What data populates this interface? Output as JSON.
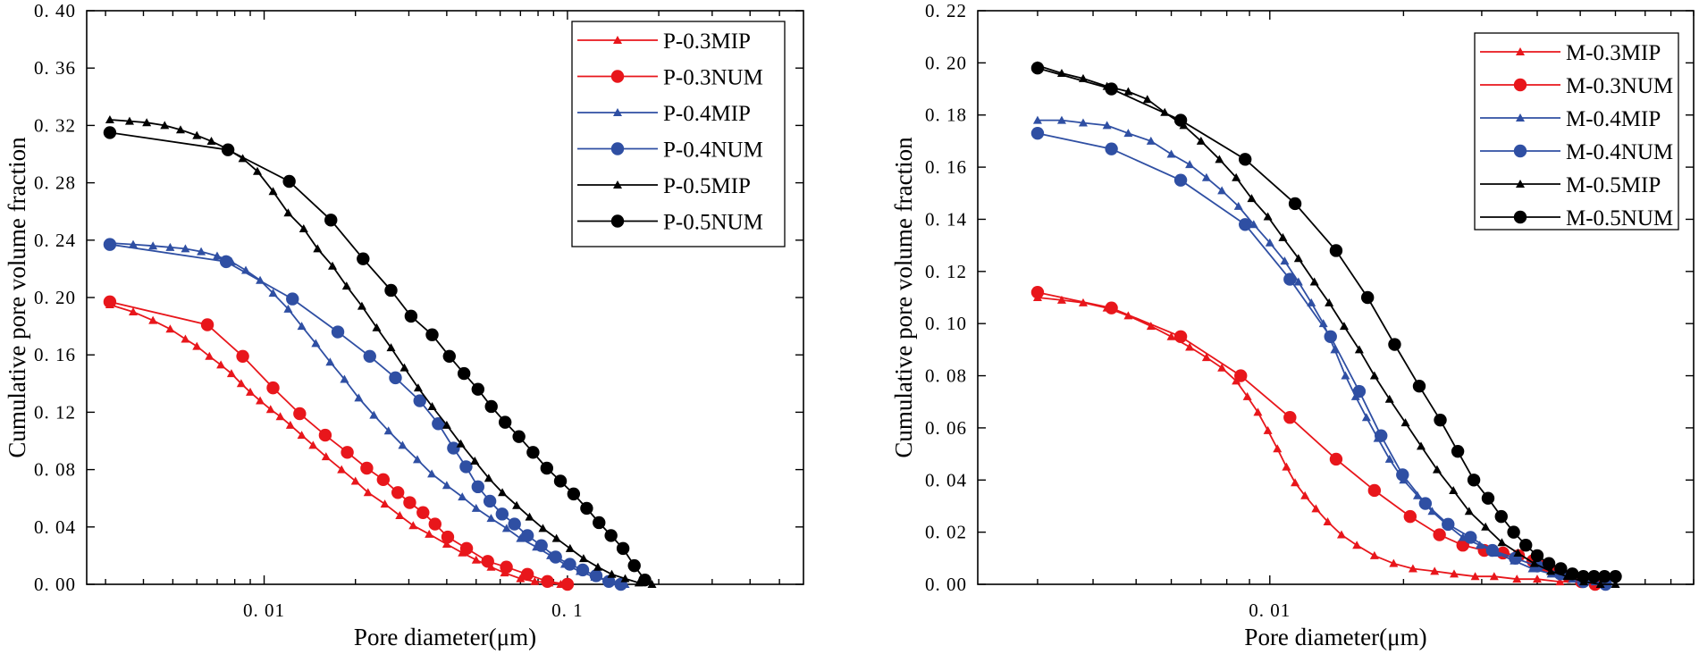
{
  "colors": {
    "red": "#e8161b",
    "blue": "#2f4fa3",
    "black": "#000000"
  },
  "chart_data": [
    {
      "type": "line",
      "xscale": "log",
      "xlabel": "Pore diameter(μm)",
      "ylabel": "Cumulative pore volume fraction",
      "xlim": [
        0.0026,
        0.6
      ],
      "ylim": [
        0,
        0.4
      ],
      "yticks": [
        0.0,
        0.04,
        0.08,
        0.12,
        0.16,
        0.2,
        0.24,
        0.28,
        0.32,
        0.36,
        0.4
      ],
      "ytick_labels": [
        "0.00",
        "0.04",
        "0.08",
        "0.12",
        "0.16",
        "0.20",
        "0.24",
        "0.28",
        "0.32",
        "0.36",
        "0.40"
      ],
      "xticks": [
        0.01,
        0.1
      ],
      "xtick_labels": [
        "0.01",
        "0.1"
      ],
      "legend_position": "top-right",
      "series": [
        {
          "name": "P-0.3MIP",
          "color": "red",
          "marker": "triangle",
          "x": [
            0.0031,
            0.0037,
            0.0043,
            0.0049,
            0.0055,
            0.006,
            0.0066,
            0.0072,
            0.0078,
            0.0084,
            0.009,
            0.0097,
            0.0105,
            0.0113,
            0.0122,
            0.0133,
            0.0145,
            0.016,
            0.018,
            0.02,
            0.022,
            0.025,
            0.028,
            0.031,
            0.035,
            0.04,
            0.045,
            0.05,
            0.056,
            0.062,
            0.07,
            0.078,
            0.087,
            0.095
          ],
          "y": [
            0.195,
            0.19,
            0.184,
            0.178,
            0.171,
            0.166,
            0.159,
            0.153,
            0.147,
            0.14,
            0.134,
            0.128,
            0.122,
            0.117,
            0.111,
            0.104,
            0.097,
            0.089,
            0.08,
            0.072,
            0.064,
            0.056,
            0.048,
            0.041,
            0.035,
            0.028,
            0.022,
            0.017,
            0.012,
            0.008,
            0.004,
            0.002,
            0.001,
            0.0
          ]
        },
        {
          "name": "P-0.3NUM",
          "color": "red",
          "marker": "circle",
          "x": [
            0.0031,
            0.0065,
            0.0085,
            0.0107,
            0.0131,
            0.0159,
            0.0188,
            0.0218,
            0.0247,
            0.0276,
            0.0302,
            0.0334,
            0.0366,
            0.0403,
            0.0465,
            0.0546,
            0.0629,
            0.0738,
            0.0859,
            0.1
          ],
          "y": [
            0.197,
            0.181,
            0.159,
            0.137,
            0.119,
            0.104,
            0.092,
            0.081,
            0.073,
            0.064,
            0.057,
            0.05,
            0.042,
            0.033,
            0.025,
            0.016,
            0.012,
            0.007,
            0.002,
            0.0
          ]
        },
        {
          "name": "P-0.4MIP",
          "color": "blue",
          "marker": "triangle",
          "x": [
            0.0031,
            0.0037,
            0.0043,
            0.0049,
            0.0055,
            0.0062,
            0.007,
            0.0078,
            0.0087,
            0.0097,
            0.0107,
            0.012,
            0.0133,
            0.0148,
            0.0165,
            0.0184,
            0.0205,
            0.023,
            0.0257,
            0.0286,
            0.032,
            0.0357,
            0.04,
            0.045,
            0.05,
            0.056,
            0.063,
            0.07,
            0.079,
            0.088,
            0.098,
            0.11,
            0.123,
            0.14,
            0.155
          ],
          "y": [
            0.238,
            0.237,
            0.236,
            0.235,
            0.234,
            0.232,
            0.229,
            0.225,
            0.219,
            0.212,
            0.203,
            0.192,
            0.18,
            0.168,
            0.155,
            0.143,
            0.13,
            0.118,
            0.107,
            0.097,
            0.087,
            0.077,
            0.069,
            0.061,
            0.053,
            0.046,
            0.039,
            0.032,
            0.026,
            0.02,
            0.014,
            0.009,
            0.005,
            0.002,
            0.0
          ]
        },
        {
          "name": "P-0.4NUM",
          "color": "blue",
          "marker": "circle",
          "x": [
            0.0031,
            0.0075,
            0.0124,
            0.0175,
            0.0223,
            0.0271,
            0.0326,
            0.0375,
            0.0421,
            0.0463,
            0.0507,
            0.0555,
            0.0609,
            0.0669,
            0.0738,
            0.082,
            0.0914,
            0.1018,
            0.1123,
            0.1243,
            0.1369,
            0.15
          ],
          "y": [
            0.237,
            0.225,
            0.199,
            0.176,
            0.159,
            0.144,
            0.128,
            0.112,
            0.095,
            0.082,
            0.068,
            0.058,
            0.049,
            0.042,
            0.034,
            0.027,
            0.019,
            0.014,
            0.01,
            0.006,
            0.002,
            0.0
          ]
        },
        {
          "name": "P-0.5MIP",
          "color": "black",
          "marker": "triangle",
          "x": [
            0.0031,
            0.0036,
            0.0041,
            0.0047,
            0.0053,
            0.006,
            0.0067,
            0.0075,
            0.0085,
            0.0095,
            0.0107,
            0.012,
            0.0135,
            0.015,
            0.0168,
            0.0187,
            0.021,
            0.0235,
            0.0262,
            0.029,
            0.0322,
            0.0358,
            0.04,
            0.0445,
            0.0495,
            0.055,
            0.061,
            0.068,
            0.075,
            0.083,
            0.092,
            0.102,
            0.113,
            0.126,
            0.14,
            0.155,
            0.172,
            0.19
          ],
          "y": [
            0.324,
            0.323,
            0.322,
            0.32,
            0.317,
            0.313,
            0.309,
            0.304,
            0.297,
            0.288,
            0.274,
            0.259,
            0.248,
            0.234,
            0.222,
            0.208,
            0.194,
            0.179,
            0.165,
            0.151,
            0.137,
            0.124,
            0.111,
            0.098,
            0.086,
            0.074,
            0.064,
            0.055,
            0.047,
            0.039,
            0.032,
            0.025,
            0.018,
            0.012,
            0.007,
            0.004,
            0.001,
            0.0
          ]
        },
        {
          "name": "P-0.5NUM",
          "color": "black",
          "marker": "circle",
          "x": [
            0.0031,
            0.0076,
            0.0121,
            0.0166,
            0.0212,
            0.0262,
            0.0305,
            0.0358,
            0.0408,
            0.0456,
            0.0507,
            0.0561,
            0.0623,
            0.0692,
            0.077,
            0.0855,
            0.0948,
            0.1048,
            0.1157,
            0.1271,
            0.1392,
            0.1525,
            0.1661,
            0.18
          ],
          "y": [
            0.315,
            0.303,
            0.281,
            0.254,
            0.227,
            0.205,
            0.187,
            0.174,
            0.159,
            0.147,
            0.136,
            0.124,
            0.113,
            0.103,
            0.092,
            0.081,
            0.072,
            0.063,
            0.053,
            0.043,
            0.034,
            0.025,
            0.013,
            0.003
          ]
        }
      ]
    },
    {
      "type": "line",
      "xscale": "log",
      "xlabel": "Pore diameter(μm)",
      "ylabel": "Cumulative pore volume fraction",
      "xlim": [
        0.0022,
        0.09
      ],
      "ylim": [
        0,
        0.22
      ],
      "yticks": [
        0.0,
        0.02,
        0.04,
        0.06,
        0.08,
        0.1,
        0.12,
        0.14,
        0.16,
        0.18,
        0.2,
        0.22
      ],
      "ytick_labels": [
        "0.00",
        "0.02",
        "0.04",
        "0.06",
        "0.08",
        "0.10",
        "0.12",
        "0.14",
        "0.16",
        "0.18",
        "0.20",
        "0.22"
      ],
      "xticks": [
        0.01
      ],
      "xtick_labels": [
        "0.01"
      ],
      "legend_position": "top-right",
      "series": [
        {
          "name": "M-0.3MIP",
          "color": "red",
          "marker": "triangle",
          "x": [
            0.003,
            0.0034,
            0.0038,
            0.0043,
            0.0048,
            0.0054,
            0.006,
            0.0066,
            0.0072,
            0.0078,
            0.0084,
            0.0089,
            0.0094,
            0.0099,
            0.0104,
            0.0109,
            0.0114,
            0.012,
            0.0127,
            0.0135,
            0.0145,
            0.0157,
            0.0172,
            0.019,
            0.021,
            0.0235,
            0.026,
            0.029,
            0.032,
            0.036,
            0.04,
            0.045,
            0.05,
            0.055
          ],
          "y": [
            0.11,
            0.109,
            0.108,
            0.106,
            0.103,
            0.099,
            0.095,
            0.091,
            0.087,
            0.083,
            0.078,
            0.072,
            0.066,
            0.059,
            0.052,
            0.045,
            0.039,
            0.034,
            0.029,
            0.024,
            0.019,
            0.015,
            0.011,
            0.008,
            0.006,
            0.005,
            0.004,
            0.003,
            0.003,
            0.002,
            0.002,
            0.001,
            0.001,
            0.0
          ]
        },
        {
          "name": "M-0.3NUM",
          "color": "red",
          "marker": "circle",
          "x": [
            0.003,
            0.0044,
            0.0063,
            0.0086,
            0.0111,
            0.0141,
            0.0172,
            0.0207,
            0.0241,
            0.0272,
            0.0304,
            0.0335,
            0.0363,
            0.0391,
            0.0416,
            0.0443,
            0.0471,
            0.0503,
            0.054
          ],
          "y": [
            0.112,
            0.106,
            0.095,
            0.08,
            0.064,
            0.048,
            0.036,
            0.026,
            0.019,
            0.015,
            0.013,
            0.012,
            0.011,
            0.009,
            0.007,
            0.005,
            0.003,
            0.001,
            0.0
          ]
        },
        {
          "name": "M-0.4MIP",
          "color": "blue",
          "marker": "triangle",
          "x": [
            0.003,
            0.0034,
            0.0038,
            0.0043,
            0.0048,
            0.0054,
            0.006,
            0.0066,
            0.0072,
            0.0078,
            0.0085,
            0.0092,
            0.01,
            0.0108,
            0.0116,
            0.0124,
            0.0132,
            0.014,
            0.0148,
            0.0156,
            0.0165,
            0.0175,
            0.0186,
            0.02,
            0.0215,
            0.0232,
            0.025,
            0.0272,
            0.0297,
            0.0324,
            0.0355,
            0.039,
            0.043,
            0.048,
            0.054,
            0.06
          ],
          "y": [
            0.178,
            0.178,
            0.177,
            0.176,
            0.173,
            0.17,
            0.165,
            0.161,
            0.156,
            0.151,
            0.145,
            0.138,
            0.131,
            0.124,
            0.116,
            0.108,
            0.1,
            0.09,
            0.08,
            0.072,
            0.064,
            0.056,
            0.048,
            0.04,
            0.034,
            0.028,
            0.023,
            0.018,
            0.015,
            0.012,
            0.009,
            0.006,
            0.004,
            0.002,
            0.001,
            0.0
          ]
        },
        {
          "name": "M-0.4NUM",
          "color": "blue",
          "marker": "circle",
          "x": [
            0.003,
            0.0044,
            0.0063,
            0.0088,
            0.0111,
            0.0137,
            0.0159,
            0.0178,
            0.0199,
            0.0224,
            0.0252,
            0.0283,
            0.0317,
            0.0357,
            0.04,
            0.0451,
            0.0508,
            0.057
          ],
          "y": [
            0.173,
            0.167,
            0.155,
            0.138,
            0.117,
            0.095,
            0.074,
            0.057,
            0.042,
            0.031,
            0.023,
            0.018,
            0.013,
            0.01,
            0.007,
            0.004,
            0.001,
            0.0
          ]
        },
        {
          "name": "M-0.5MIP",
          "color": "black",
          "marker": "triangle",
          "x": [
            0.003,
            0.0034,
            0.0038,
            0.0043,
            0.0048,
            0.0053,
            0.0058,
            0.0064,
            0.007,
            0.0077,
            0.0084,
            0.0091,
            0.0099,
            0.0107,
            0.0116,
            0.0126,
            0.0136,
            0.0147,
            0.0159,
            0.0172,
            0.0186,
            0.0202,
            0.0219,
            0.0238,
            0.0259,
            0.0281,
            0.0306,
            0.0333,
            0.0362,
            0.0394,
            0.0429,
            0.0467,
            0.0509,
            0.0555,
            0.06
          ],
          "y": [
            0.199,
            0.196,
            0.194,
            0.191,
            0.189,
            0.186,
            0.181,
            0.176,
            0.17,
            0.163,
            0.156,
            0.148,
            0.141,
            0.133,
            0.125,
            0.116,
            0.108,
            0.099,
            0.09,
            0.08,
            0.071,
            0.062,
            0.053,
            0.044,
            0.036,
            0.028,
            0.022,
            0.016,
            0.012,
            0.008,
            0.005,
            0.003,
            0.001,
            0.0,
            0.0
          ]
        },
        {
          "name": "M-0.5NUM",
          "color": "black",
          "marker": "circle",
          "x": [
            0.003,
            0.0044,
            0.0063,
            0.0088,
            0.0114,
            0.0141,
            0.0166,
            0.0191,
            0.0217,
            0.0242,
            0.0265,
            0.0288,
            0.031,
            0.0332,
            0.0354,
            0.0377,
            0.04,
            0.0425,
            0.0452,
            0.048,
            0.0508,
            0.0537,
            0.0567,
            0.06
          ],
          "y": [
            0.198,
            0.19,
            0.178,
            0.163,
            0.146,
            0.128,
            0.11,
            0.092,
            0.076,
            0.063,
            0.051,
            0.04,
            0.033,
            0.026,
            0.02,
            0.015,
            0.011,
            0.008,
            0.006,
            0.004,
            0.003,
            0.003,
            0.003,
            0.003
          ]
        }
      ]
    }
  ]
}
